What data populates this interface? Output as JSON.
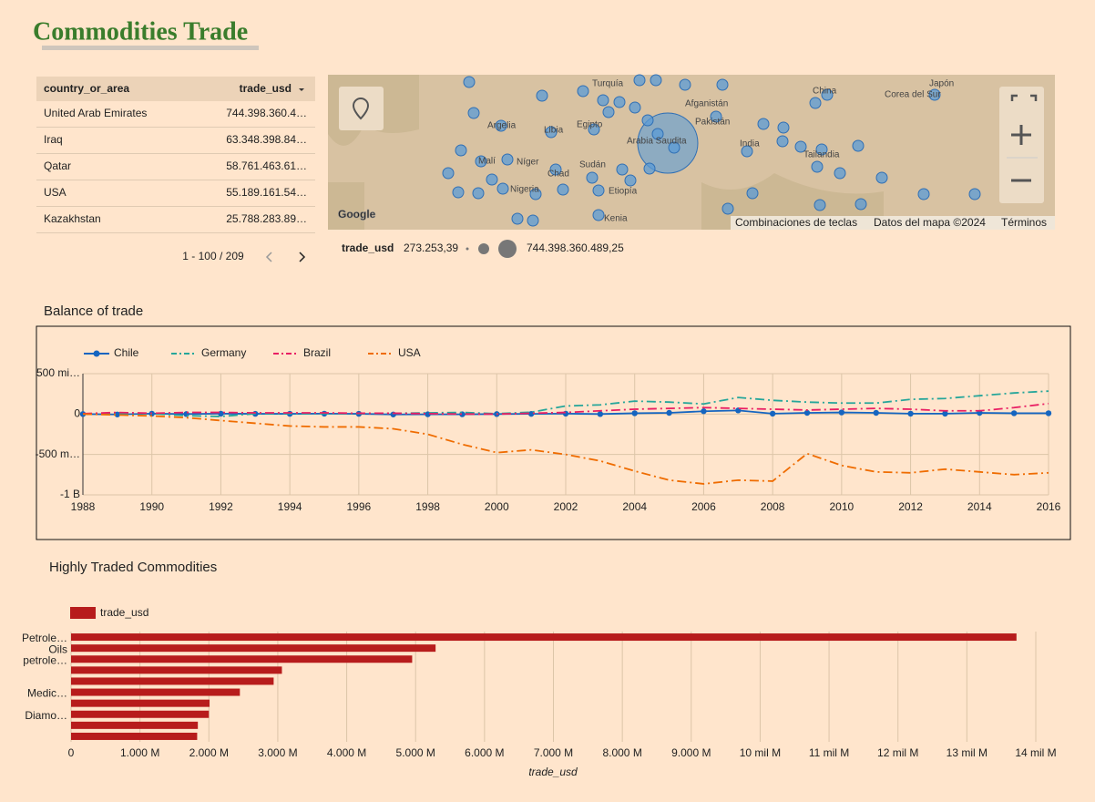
{
  "header": {
    "title": "Commodities Trade"
  },
  "table": {
    "columns": [
      "country_or_area",
      "trade_usd"
    ],
    "rows": [
      [
        "United Arab Emirates",
        "744.398.360.4…"
      ],
      [
        "Iraq",
        "63.348.398.84…"
      ],
      [
        "Qatar",
        "58.761.463.61…"
      ],
      [
        "USA",
        "55.189.161.54…"
      ],
      [
        "Kazakhstan",
        "25.788.283.89…"
      ]
    ],
    "pagination": "1 - 100 / 209"
  },
  "map": {
    "labels": [
      "Turquía",
      "Afganistán",
      "Pakistán",
      "India",
      "China",
      "Corea del Sur",
      "Japón",
      "Argelia",
      "Libia",
      "Egipto",
      "Arabia Saudita",
      "Malí",
      "Níger",
      "Chad",
      "Sudán",
      "Nigeria",
      "Etiopía",
      "Kenia",
      "Tailandia"
    ],
    "logo": "Google",
    "attribution": [
      "Combinaciones de teclas",
      "Datos del mapa ©2024",
      "Términos"
    ],
    "legend": {
      "title": "trade_usd",
      "min": "273.253,39",
      "max": "744.398.360.489,25"
    }
  },
  "chart_data": [
    {
      "type": "line",
      "title": "Balance of trade",
      "x": [
        1988,
        1989,
        1990,
        1991,
        1992,
        1993,
        1994,
        1995,
        1996,
        1997,
        1998,
        1999,
        2000,
        2001,
        2002,
        2003,
        2004,
        2005,
        2006,
        2007,
        2008,
        2009,
        2010,
        2011,
        2012,
        2013,
        2014,
        2015,
        2016
      ],
      "xlim": [
        1988,
        2016
      ],
      "xticks": [
        1988,
        1990,
        1992,
        1994,
        1996,
        1998,
        2000,
        2002,
        2004,
        2006,
        2008,
        2010,
        2012,
        2014,
        2016
      ],
      "ylim": [
        -1000000000,
        500000000
      ],
      "yticks": [
        {
          "value": 500000000,
          "label": "500 mi…"
        },
        0,
        {
          "value": -500000000,
          "label": "-500 m…"
        },
        {
          "value": -1000000000,
          "label": "-1 B"
        }
      ],
      "grid": true,
      "legend": "top-left",
      "series": [
        {
          "name": "Chile",
          "color": "#1565c0",
          "style": "solid",
          "markers": true,
          "values": [
            0,
            -5000000,
            5000000,
            0,
            5000000,
            3000000,
            3000000,
            5000000,
            3000000,
            -5000000,
            -3000000,
            -3000000,
            0,
            2000000,
            5000000,
            0,
            10000000,
            15000000,
            35000000,
            45000000,
            5000000,
            15000000,
            20000000,
            15000000,
            5000000,
            5000000,
            15000000,
            10000000,
            10000000
          ]
        },
        {
          "name": "Germany",
          "color": "#26a69a",
          "style": "dashdot",
          "markers": false,
          "values": [
            0,
            10000000,
            5000000,
            -20000000,
            -30000000,
            5000000,
            5000000,
            5000000,
            5000000,
            10000000,
            15000000,
            20000000,
            5000000,
            23000000,
            100000000,
            114000000,
            160000000,
            148000000,
            125000000,
            205000000,
            170000000,
            148000000,
            136000000,
            136000000,
            182000000,
            193000000,
            227000000,
            261000000,
            284000000
          ]
        },
        {
          "name": "Brazil",
          "color": "#e91e63",
          "style": "dashdot",
          "markers": false,
          "values": [
            5000000,
            20000000,
            10000000,
            20000000,
            20000000,
            15000000,
            15000000,
            15000000,
            10000000,
            10000000,
            5000000,
            0,
            0,
            10000000,
            20000000,
            40000000,
            60000000,
            70000000,
            80000000,
            70000000,
            60000000,
            50000000,
            60000000,
            70000000,
            60000000,
            40000000,
            40000000,
            80000000,
            130000000
          ]
        },
        {
          "name": "USA",
          "color": "#ef6c00",
          "style": "dashdot",
          "markers": false,
          "values": [
            0,
            -11000000,
            -23000000,
            -45000000,
            -80000000,
            -114000000,
            -148000000,
            -159000000,
            -159000000,
            -182000000,
            -250000000,
            -375000000,
            -477000000,
            -443000000,
            -500000000,
            -580000000,
            -705000000,
            -818000000,
            -864000000,
            -818000000,
            -830000000,
            -489000000,
            -636000000,
            -716000000,
            -727000000,
            -682000000,
            -716000000,
            -750000000,
            -727000000
          ]
        }
      ]
    },
    {
      "type": "hbar",
      "title": "Highly Traded Commodities",
      "categories": [
        "Petrole…",
        "Oils",
        "petrole…",
        null,
        null,
        "Medic…",
        null,
        "Diamo…",
        null,
        null
      ],
      "series": [
        {
          "name": "trade_usd",
          "color": "#b71c1c",
          "values": [
            13720000000,
            5290000000,
            4950000000,
            3060000000,
            2940000000,
            2450000000,
            2010000000,
            2000000000,
            1840000000,
            1830000000
          ]
        }
      ],
      "xlim": [
        0,
        14000000000
      ],
      "xticks": [
        0,
        {
          "value": 1000000000,
          "label": "1.000 M"
        },
        {
          "value": 2000000000,
          "label": "2.000 M"
        },
        {
          "value": 3000000000,
          "label": "3.000 M"
        },
        {
          "value": 4000000000,
          "label": "4.000 M"
        },
        {
          "value": 5000000000,
          "label": "5.000 M"
        },
        {
          "value": 6000000000,
          "label": "6.000 M"
        },
        {
          "value": 7000000000,
          "label": "7.000 M"
        },
        {
          "value": 8000000000,
          "label": "8.000 M"
        },
        {
          "value": 9000000000,
          "label": "9.000 M"
        },
        {
          "value": 10000000000,
          "label": "10 mil M"
        },
        {
          "value": 11000000000,
          "label": "11 mil M"
        },
        {
          "value": 12000000000,
          "label": "12 mil M"
        },
        {
          "value": 13000000000,
          "label": "13 mil M"
        },
        {
          "value": 14000000000,
          "label": "14 mil M"
        }
      ],
      "x_label": "trade_usd",
      "grid": true,
      "legend": "top-left"
    }
  ]
}
